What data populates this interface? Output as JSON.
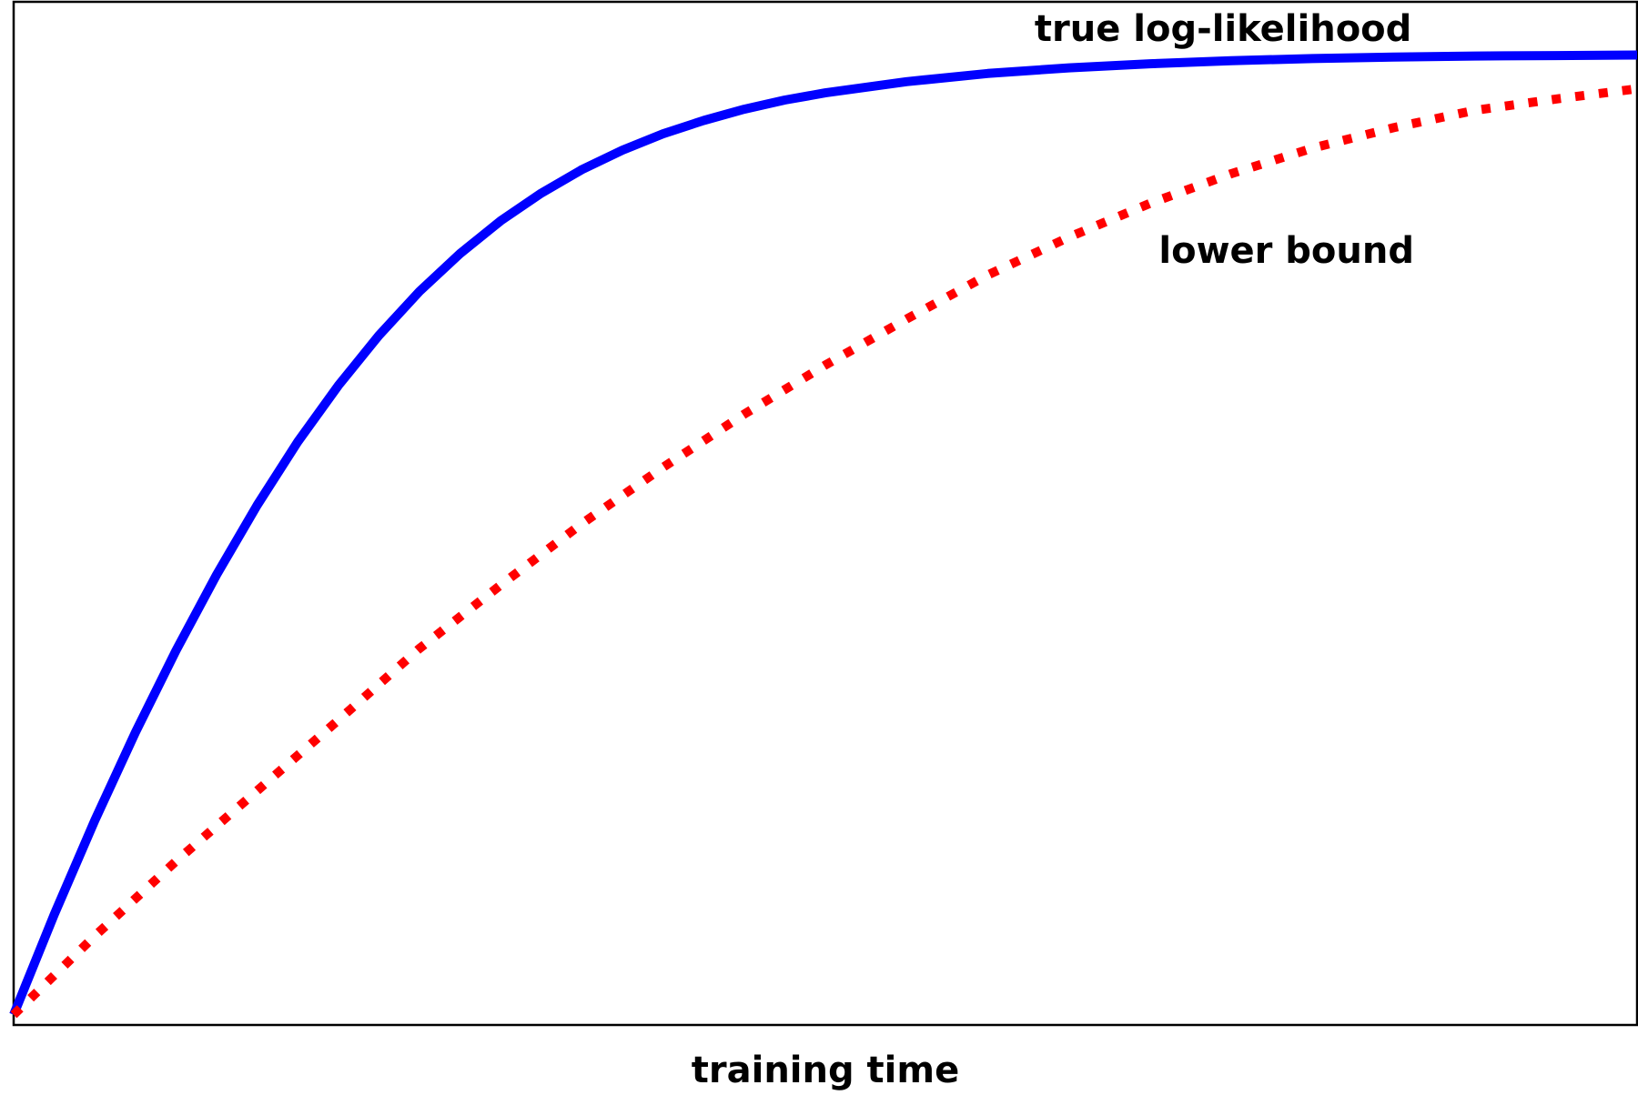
{
  "chart_data": {
    "type": "line",
    "title": "",
    "xlabel": "training time",
    "ylabel": "",
    "xlim": [
      0,
      1
    ],
    "ylim": [
      0,
      1
    ],
    "grid": false,
    "x_ticks": [],
    "y_ticks": [],
    "series": [
      {
        "name": "true log-likelihood",
        "color": "#0000ff",
        "linestyle": "solid",
        "x": [
          0,
          0.025,
          0.05,
          0.075,
          0.1,
          0.125,
          0.15,
          0.175,
          0.2,
          0.225,
          0.25,
          0.275,
          0.3,
          0.325,
          0.35,
          0.375,
          0.4,
          0.425,
          0.45,
          0.475,
          0.5,
          0.55,
          0.6,
          0.65,
          0.7,
          0.75,
          0.8,
          0.85,
          0.9,
          0.95,
          1
        ],
        "y": [
          0.01,
          0.108,
          0.2,
          0.286,
          0.366,
          0.44,
          0.508,
          0.57,
          0.625,
          0.674,
          0.717,
          0.754,
          0.786,
          0.813,
          0.836,
          0.855,
          0.871,
          0.884,
          0.895,
          0.904,
          0.911,
          0.922,
          0.93,
          0.9355,
          0.9395,
          0.9425,
          0.9445,
          0.946,
          0.947,
          0.9475,
          0.948
        ]
      },
      {
        "name": "lower bound",
        "color": "#ff0000",
        "linestyle": "dotted",
        "x": [
          0,
          0.05,
          0.1,
          0.15,
          0.2,
          0.25,
          0.3,
          0.35,
          0.4,
          0.45,
          0.5,
          0.55,
          0.6,
          0.65,
          0.7,
          0.75,
          0.8,
          0.85,
          0.9,
          0.95,
          1
        ],
        "y": [
          0.01,
          0.087,
          0.16,
          0.229,
          0.298,
          0.368,
          0.43,
          0.49,
          0.545,
          0.597,
          0.645,
          0.69,
          0.733,
          0.77,
          0.803,
          0.832,
          0.857,
          0.877,
          0.894,
          0.905,
          0.915
        ]
      }
    ],
    "annotations": [
      {
        "text": "true log-likelihood",
        "x": 0.745,
        "y": 0.962
      },
      {
        "text": "lower bound",
        "x": 0.784,
        "y": 0.745
      }
    ]
  }
}
